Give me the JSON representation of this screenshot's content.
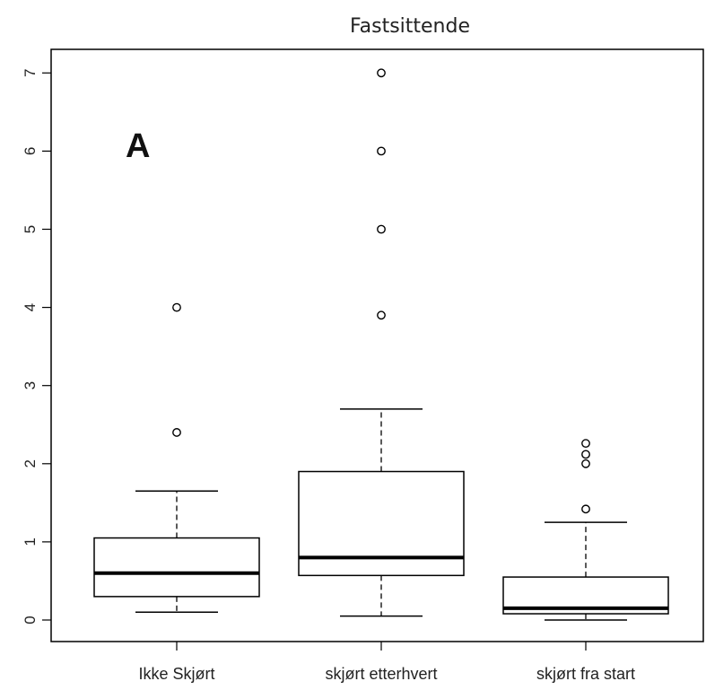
{
  "chart_data": {
    "type": "boxplot",
    "title": "Fastsittende",
    "panel_label": "A",
    "xlabel": "",
    "ylabel": "",
    "ylim": [
      0,
      7
    ],
    "yticks": [
      "0",
      "1",
      "2",
      "3",
      "4",
      "5",
      "6",
      "7"
    ],
    "categories": [
      "Ikke Skjørt",
      "skjørt etterhvert",
      "skjørt fra start"
    ],
    "boxes": [
      {
        "whisker_low": 0.1,
        "q1": 0.3,
        "median": 0.6,
        "q3": 1.05,
        "whisker_high": 1.65,
        "outliers": [
          2.4,
          4.0
        ]
      },
      {
        "whisker_low": 0.05,
        "q1": 0.57,
        "median": 0.8,
        "q3": 1.9,
        "whisker_high": 2.7,
        "outliers": [
          3.9,
          5.0,
          6.0,
          7.0
        ]
      },
      {
        "whisker_low": 0.0,
        "q1": 0.08,
        "median": 0.15,
        "q3": 0.55,
        "whisker_high": 1.25,
        "outliers": [
          1.42,
          2.0,
          2.12,
          2.26
        ]
      }
    ]
  }
}
